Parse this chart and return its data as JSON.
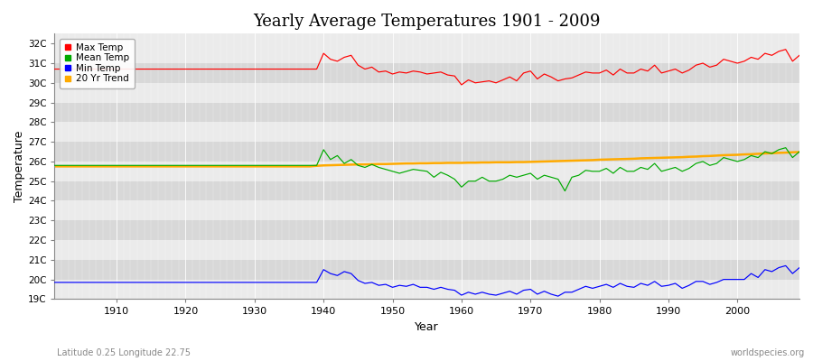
{
  "title": "Yearly Average Temperatures 1901 - 2009",
  "xlabel": "Year",
  "ylabel": "Temperature",
  "subtitle": "Latitude 0.25 Longitude 22.75",
  "watermark": "worldspecies.org",
  "ylim": [
    19,
    32.5
  ],
  "xlim": [
    1901,
    2009
  ],
  "yticks": [
    19,
    20,
    21,
    22,
    23,
    24,
    25,
    26,
    27,
    28,
    29,
    30,
    31,
    32
  ],
  "ytick_labels": [
    "19C",
    "20C",
    "21C",
    "22C",
    "23C",
    "24C",
    "25C",
    "26C",
    "27C",
    "28C",
    "29C",
    "30C",
    "31C",
    "32C"
  ],
  "xticks": [
    1910,
    1920,
    1930,
    1940,
    1950,
    1960,
    1970,
    1980,
    1990,
    2000
  ],
  "bg_color": "#ffffff",
  "plot_bg_light": "#ebebeb",
  "plot_bg_dark": "#d8d8d8",
  "legend_colors": {
    "Max Temp": "#ff0000",
    "Mean Temp": "#00aa00",
    "Min Temp": "#0000ff",
    "20 Yr Trend": "#ffaa00"
  },
  "years": [
    1901,
    1902,
    1903,
    1904,
    1905,
    1906,
    1907,
    1908,
    1909,
    1910,
    1911,
    1912,
    1913,
    1914,
    1915,
    1916,
    1917,
    1918,
    1919,
    1920,
    1921,
    1922,
    1923,
    1924,
    1925,
    1926,
    1927,
    1928,
    1929,
    1930,
    1931,
    1932,
    1933,
    1934,
    1935,
    1936,
    1937,
    1938,
    1939,
    1940,
    1941,
    1942,
    1943,
    1944,
    1945,
    1946,
    1947,
    1948,
    1949,
    1950,
    1951,
    1952,
    1953,
    1954,
    1955,
    1956,
    1957,
    1958,
    1959,
    1960,
    1961,
    1962,
    1963,
    1964,
    1965,
    1966,
    1967,
    1968,
    1969,
    1970,
    1971,
    1972,
    1973,
    1974,
    1975,
    1976,
    1977,
    1978,
    1979,
    1980,
    1981,
    1982,
    1983,
    1984,
    1985,
    1986,
    1987,
    1988,
    1989,
    1990,
    1991,
    1992,
    1993,
    1994,
    1995,
    1996,
    1997,
    1998,
    1999,
    2000,
    2001,
    2002,
    2003,
    2004,
    2005,
    2006,
    2007,
    2008,
    2009
  ],
  "max_temp": [
    30.7,
    30.7,
    30.7,
    30.7,
    30.7,
    30.7,
    30.7,
    30.7,
    30.7,
    30.7,
    30.7,
    30.7,
    30.7,
    30.7,
    30.7,
    30.7,
    30.7,
    30.7,
    30.7,
    30.7,
    30.7,
    30.7,
    30.7,
    30.7,
    30.7,
    30.7,
    30.7,
    30.7,
    30.7,
    30.7,
    30.7,
    30.7,
    30.7,
    30.7,
    30.7,
    30.7,
    30.7,
    30.7,
    30.7,
    31.5,
    31.2,
    31.1,
    31.3,
    31.4,
    30.9,
    30.7,
    30.8,
    30.55,
    30.6,
    30.45,
    30.55,
    30.5,
    30.6,
    30.55,
    30.45,
    30.5,
    30.55,
    30.4,
    30.35,
    29.9,
    30.15,
    30.0,
    30.05,
    30.1,
    30.0,
    30.15,
    30.3,
    30.1,
    30.5,
    30.6,
    30.2,
    30.45,
    30.3,
    30.1,
    30.2,
    30.25,
    30.4,
    30.55,
    30.5,
    30.5,
    30.65,
    30.4,
    30.7,
    30.5,
    30.5,
    30.7,
    30.6,
    30.9,
    30.5,
    30.6,
    30.7,
    30.5,
    30.65,
    30.9,
    31.0,
    30.8,
    30.9,
    31.2,
    31.1,
    31.0,
    31.1,
    31.3,
    31.2,
    31.5,
    31.4,
    31.6,
    31.7,
    31.1,
    31.4
  ],
  "mean_temp": [
    25.8,
    25.8,
    25.8,
    25.8,
    25.8,
    25.8,
    25.8,
    25.8,
    25.8,
    25.8,
    25.8,
    25.8,
    25.8,
    25.8,
    25.8,
    25.8,
    25.8,
    25.8,
    25.8,
    25.8,
    25.8,
    25.8,
    25.8,
    25.8,
    25.8,
    25.8,
    25.8,
    25.8,
    25.8,
    25.8,
    25.8,
    25.8,
    25.8,
    25.8,
    25.8,
    25.8,
    25.8,
    25.8,
    25.8,
    26.6,
    26.1,
    26.3,
    25.9,
    26.1,
    25.8,
    25.7,
    25.85,
    25.7,
    25.6,
    25.5,
    25.4,
    25.5,
    25.6,
    25.55,
    25.5,
    25.2,
    25.45,
    25.3,
    25.1,
    24.7,
    25.0,
    25.0,
    25.2,
    25.0,
    25.0,
    25.1,
    25.3,
    25.2,
    25.3,
    25.4,
    25.1,
    25.3,
    25.2,
    25.1,
    24.5,
    25.2,
    25.3,
    25.55,
    25.5,
    25.5,
    25.65,
    25.4,
    25.7,
    25.5,
    25.5,
    25.7,
    25.6,
    25.9,
    25.5,
    25.6,
    25.7,
    25.5,
    25.65,
    25.9,
    26.0,
    25.8,
    25.9,
    26.2,
    26.1,
    26.0,
    26.1,
    26.3,
    26.2,
    26.5,
    26.4,
    26.6,
    26.7,
    26.2,
    26.5
  ],
  "min_temp": [
    19.85,
    19.85,
    19.85,
    19.85,
    19.85,
    19.85,
    19.85,
    19.85,
    19.85,
    19.85,
    19.85,
    19.85,
    19.85,
    19.85,
    19.85,
    19.85,
    19.85,
    19.85,
    19.85,
    19.85,
    19.85,
    19.85,
    19.85,
    19.85,
    19.85,
    19.85,
    19.85,
    19.85,
    19.85,
    19.85,
    19.85,
    19.85,
    19.85,
    19.85,
    19.85,
    19.85,
    19.85,
    19.85,
    19.85,
    20.5,
    20.3,
    20.2,
    20.4,
    20.3,
    19.95,
    19.8,
    19.85,
    19.7,
    19.75,
    19.6,
    19.7,
    19.65,
    19.75,
    19.6,
    19.6,
    19.5,
    19.6,
    19.5,
    19.45,
    19.2,
    19.35,
    19.25,
    19.35,
    19.25,
    19.2,
    19.3,
    19.4,
    19.25,
    19.45,
    19.5,
    19.25,
    19.4,
    19.25,
    19.15,
    19.35,
    19.35,
    19.5,
    19.65,
    19.55,
    19.65,
    19.75,
    19.6,
    19.8,
    19.65,
    19.6,
    19.8,
    19.7,
    19.9,
    19.65,
    19.7,
    19.8,
    19.55,
    19.7,
    19.9,
    19.9,
    19.75,
    19.85,
    20.0,
    20.0,
    20.0,
    20.0,
    20.3,
    20.1,
    20.5,
    20.4,
    20.6,
    20.7,
    20.3,
    20.6
  ],
  "trend": [
    25.75,
    25.75,
    25.75,
    25.75,
    25.75,
    25.75,
    25.75,
    25.75,
    25.75,
    25.75,
    25.75,
    25.75,
    25.75,
    25.75,
    25.75,
    25.75,
    25.75,
    25.75,
    25.75,
    25.75,
    25.75,
    25.75,
    25.75,
    25.75,
    25.75,
    25.75,
    25.75,
    25.75,
    25.75,
    25.75,
    25.75,
    25.75,
    25.75,
    25.75,
    25.75,
    25.75,
    25.75,
    25.75,
    25.78,
    25.8,
    25.81,
    25.82,
    25.83,
    25.84,
    25.85,
    25.85,
    25.86,
    25.87,
    25.87,
    25.88,
    25.89,
    25.9,
    25.9,
    25.91,
    25.91,
    25.92,
    25.92,
    25.93,
    25.93,
    25.93,
    25.94,
    25.94,
    25.95,
    25.95,
    25.96,
    25.96,
    25.96,
    25.97,
    25.97,
    25.98,
    25.99,
    26.0,
    26.01,
    26.02,
    26.03,
    26.04,
    26.05,
    26.06,
    26.07,
    26.09,
    26.1,
    26.11,
    26.12,
    26.13,
    26.14,
    26.16,
    26.17,
    26.18,
    26.19,
    26.2,
    26.21,
    26.22,
    26.24,
    26.25,
    26.27,
    26.28,
    26.3,
    26.32,
    26.33,
    26.34,
    26.36,
    26.37,
    26.39,
    26.41,
    26.42,
    26.44,
    26.45,
    26.47,
    26.48
  ]
}
